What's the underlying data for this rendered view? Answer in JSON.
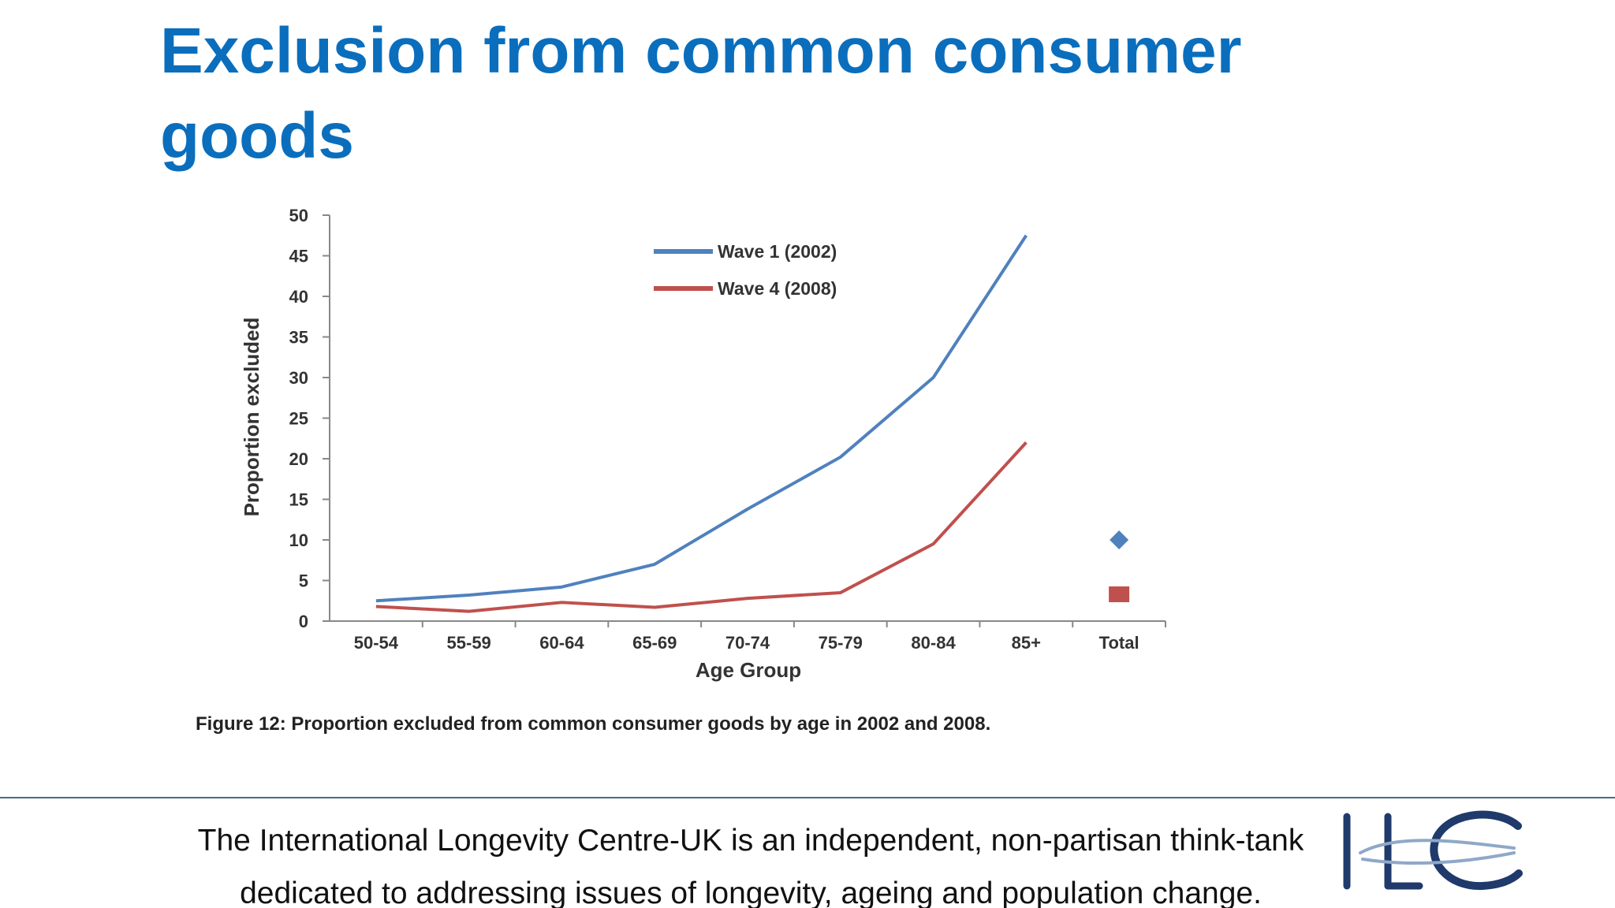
{
  "slide": {
    "title_lines": [
      "Exclusion from common consumer",
      "goods"
    ],
    "footer_lines": [
      "The International Longevity Centre-UK is an independent, non-partisan think-tank",
      "dedicated to addressing issues of longevity, ageing and population change."
    ]
  },
  "chart_data": {
    "type": "line",
    "caption": "Figure 12: Proportion excluded from common consumer goods by age in 2002 and 2008.",
    "x_label": "Age Group",
    "y_label": "Proportion excluded",
    "categories": [
      "50-54",
      "55-59",
      "60-64",
      "65-69",
      "70-74",
      "75-79",
      "80-84",
      "85+",
      "Total"
    ],
    "series": [
      {
        "name": "Wave 1 (2002)",
        "color": "#4f81bd",
        "values": [
          2.5,
          3.2,
          4.2,
          7,
          13.8,
          20.2,
          30,
          47.5,
          null
        ]
      },
      {
        "name": "Wave 4 (2008)",
        "color": "#c0504d",
        "values": [
          1.8,
          1.2,
          2.3,
          1.7,
          2.8,
          3.5,
          9.5,
          22,
          null
        ]
      },
      {
        "color": "#4f81bd",
        "marker": "diamond",
        "values": [
          null,
          null,
          null,
          null,
          null,
          null,
          null,
          null,
          10
        ]
      },
      {
        "color": "#c0504d",
        "marker": "square",
        "values": [
          null,
          null,
          null,
          null,
          null,
          null,
          null,
          null,
          3.3
        ]
      }
    ],
    "ylim": [
      0,
      50
    ],
    "yticks": [
      0,
      5,
      10,
      15,
      20,
      25,
      30,
      35,
      40,
      45,
      50
    ]
  }
}
